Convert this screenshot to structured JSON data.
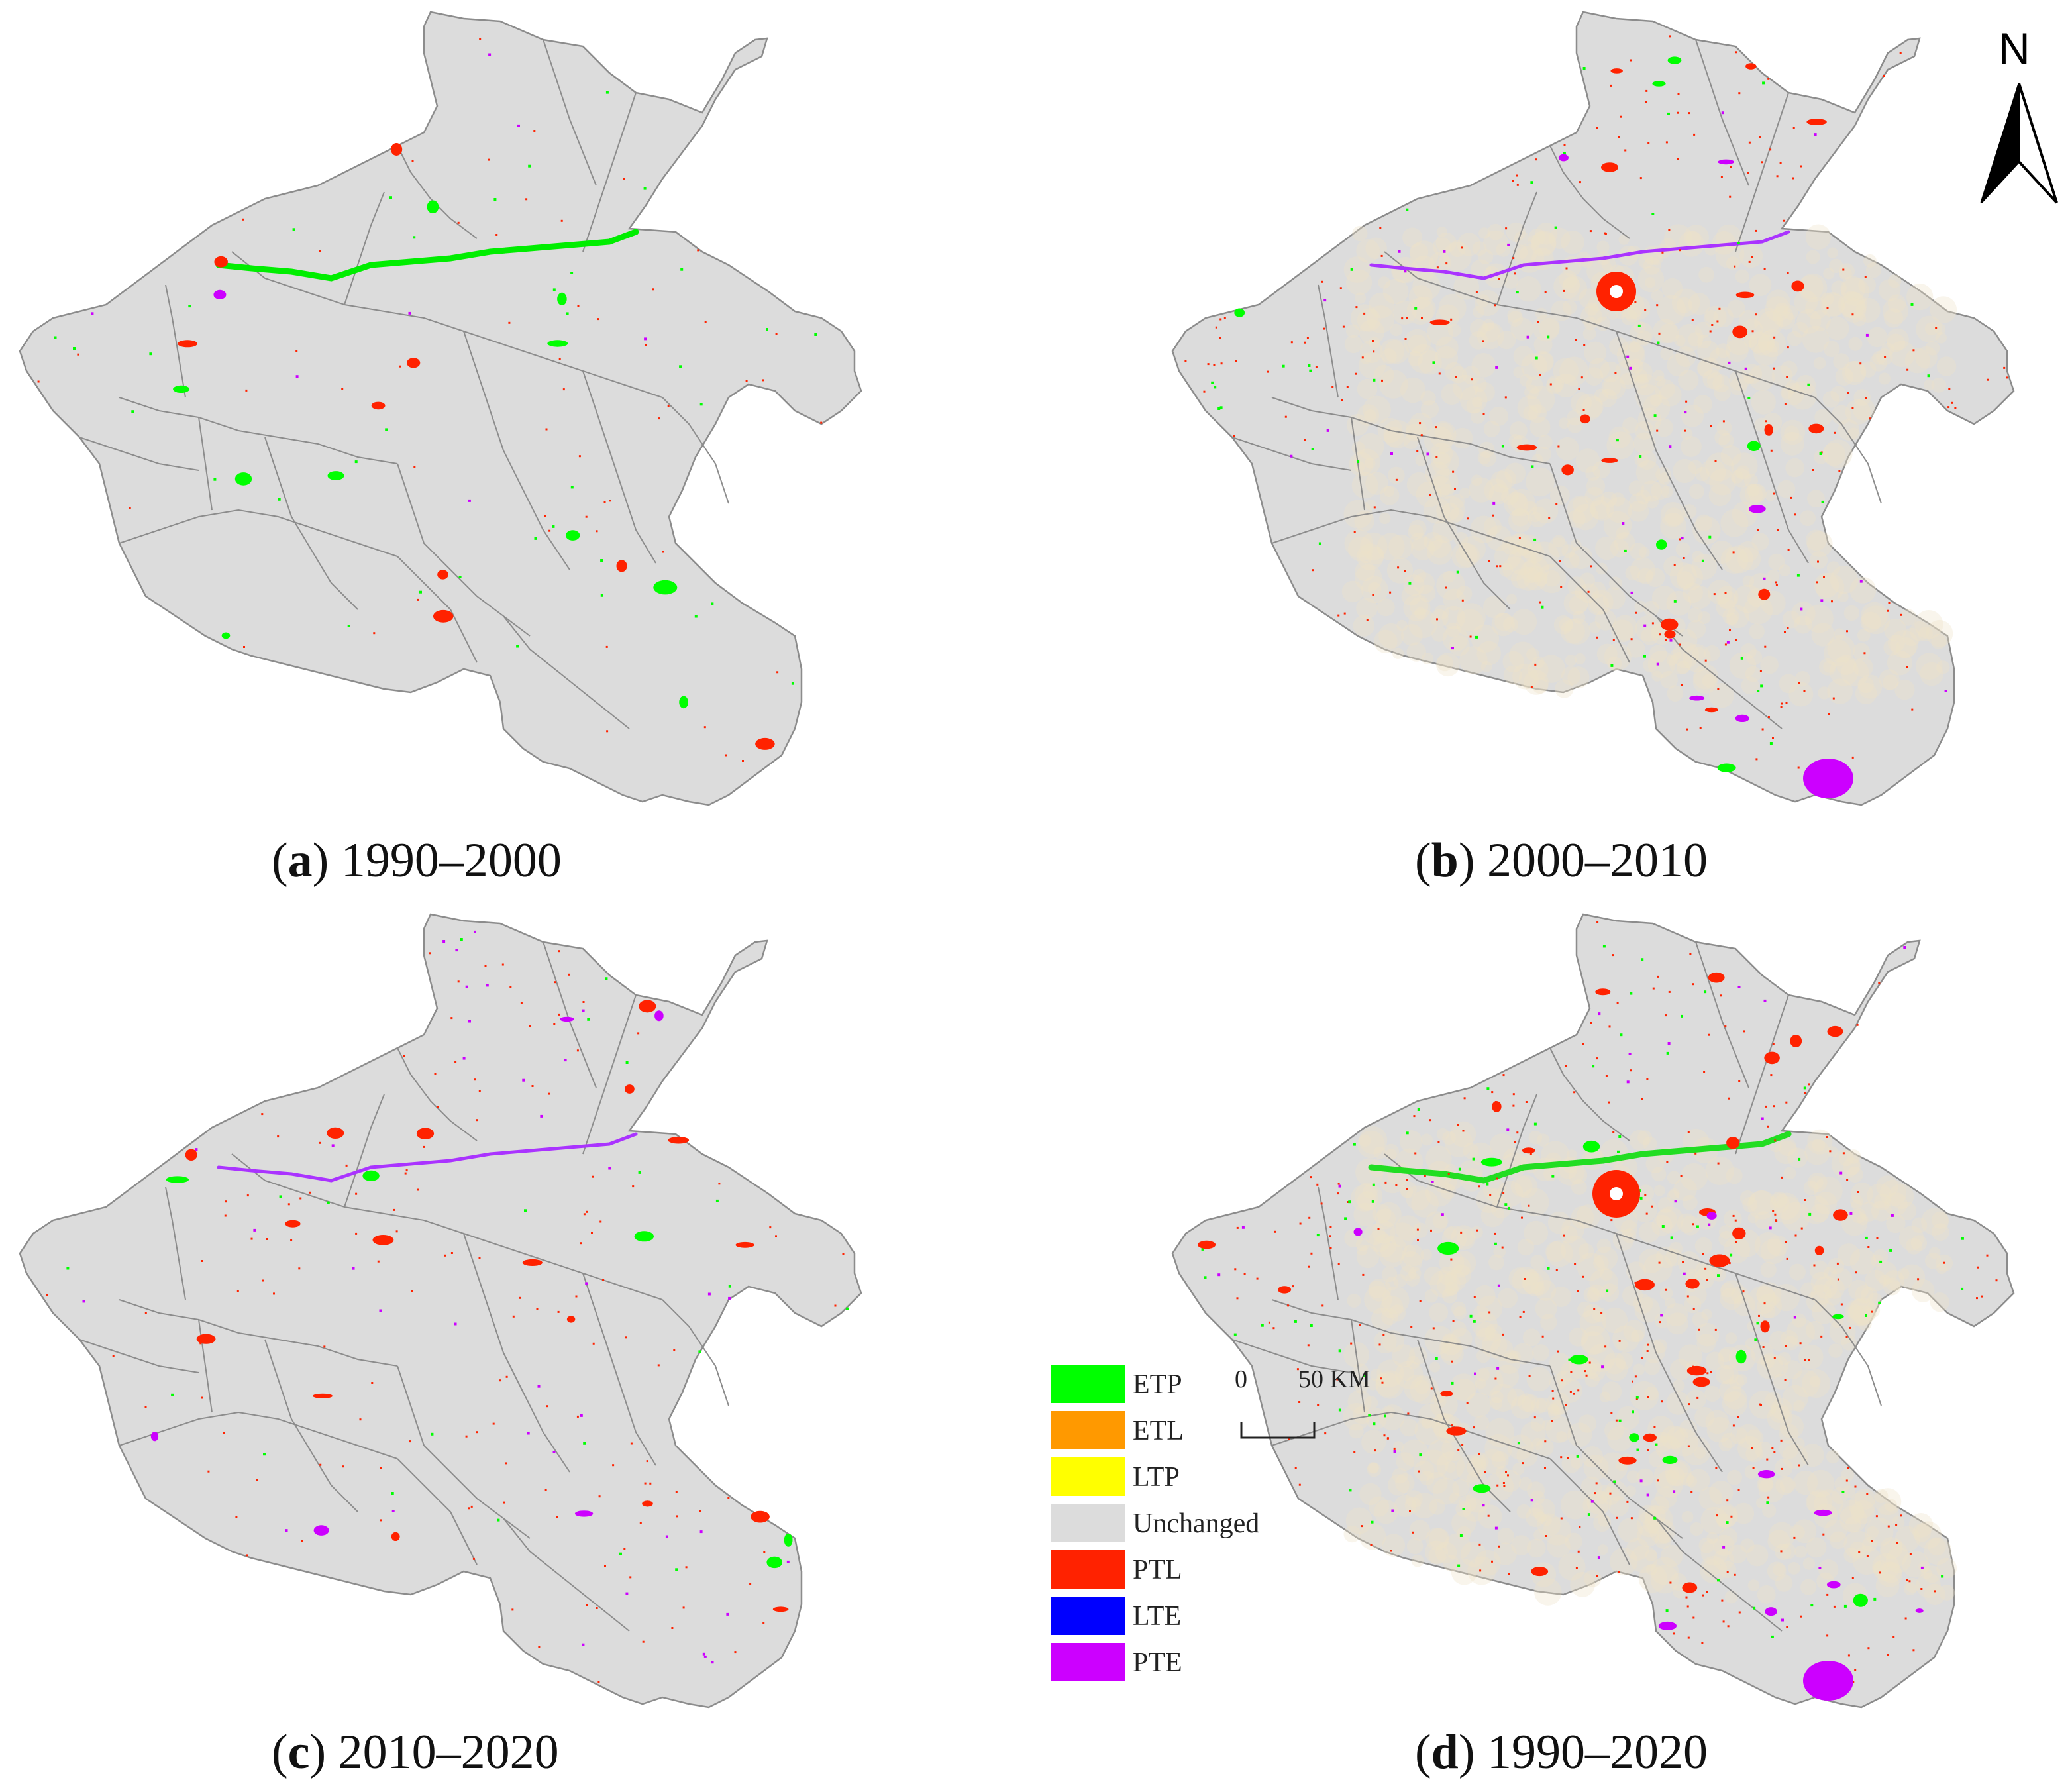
{
  "colors": {
    "ETP": "#00ff00",
    "ETL": "#ff9900",
    "LTP": "#ffff00",
    "Unchanged": "#dcdcdc",
    "PTL": "#ff2200",
    "LTE": "#0000ff",
    "PTE": "#cc00ff",
    "boundary": "#8c8c8c"
  },
  "panels": [
    {
      "letter": "a",
      "label": " 1990–2000"
    },
    {
      "letter": "b",
      "label": " 2000–2010"
    },
    {
      "letter": "c",
      "label": " 2010–2020"
    },
    {
      "letter": "d",
      "label": " 1990–2020"
    }
  ],
  "legend": [
    {
      "code": "ETP",
      "label": "ETP"
    },
    {
      "code": "ETL",
      "label": "ETL"
    },
    {
      "code": "LTP",
      "label": "LTP"
    },
    {
      "code": "Unchanged",
      "label": "Unchanged"
    },
    {
      "code": "PTL",
      "label": "PTL"
    },
    {
      "code": "LTE",
      "label": "LTE"
    },
    {
      "code": "PTE",
      "label": "PTE"
    }
  ],
  "scale": {
    "zero": "0",
    "end": "50 KM"
  },
  "north": {
    "label": "N",
    "icon": "north-arrow-icon"
  }
}
